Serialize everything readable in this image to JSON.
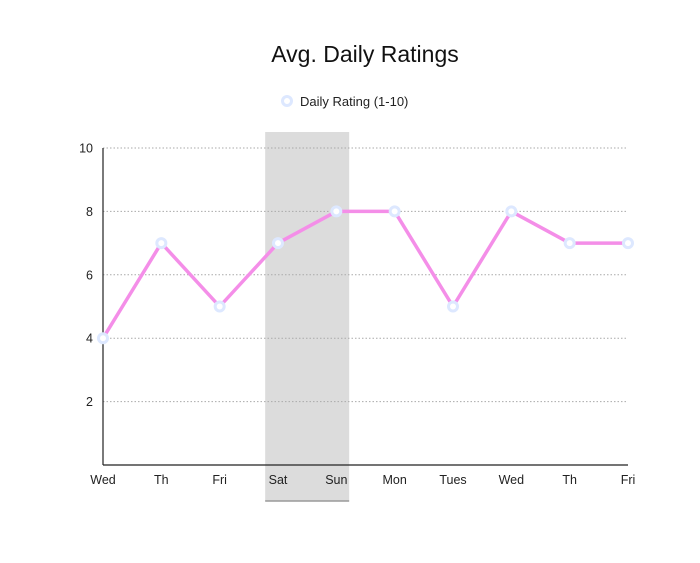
{
  "chart_data": {
    "type": "line",
    "title": "Avg. Daily Ratings",
    "xlabel": "",
    "ylabel": "",
    "categories": [
      "Wed",
      "Th",
      "Fri",
      "Sat",
      "Sun",
      "Mon",
      "Tues",
      "Wed",
      "Th",
      "Fri"
    ],
    "series": [
      {
        "name": "Daily Rating (1-10)",
        "values": [
          4,
          7,
          5,
          7,
          8,
          8,
          5,
          8,
          7,
          7
        ],
        "color": "#f48ee8"
      }
    ],
    "ylim": [
      0,
      10
    ],
    "yticks": [
      2,
      4,
      6,
      8,
      10
    ],
    "highlight_range": [
      "Sat",
      "Sun"
    ],
    "highlight_color": "#dcdcdc",
    "grid": true,
    "grid_style": "dotted",
    "legend_position": "top-center",
    "marker_color": "#dde8ff"
  }
}
